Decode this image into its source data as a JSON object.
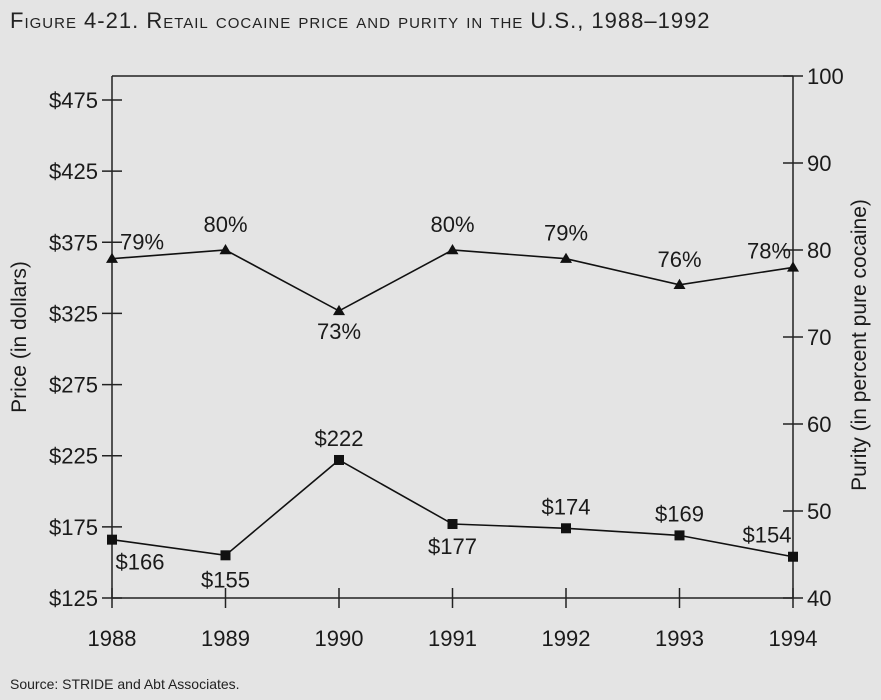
{
  "title": "Figure 4-21. Retail cocaine price and purity in the U.S., 1988–1992",
  "source": "Source: STRIDE and Abt Associates.",
  "chart_data": {
    "type": "line",
    "title": "Figure 4-21. Retail cocaine price and purity in the U.S., 1988–1992",
    "x": [
      1988,
      1989,
      1990,
      1991,
      1992,
      1993,
      1994
    ],
    "xticks": [
      "1988",
      "1989",
      "1990",
      "1991",
      "1992",
      "1993",
      "1994"
    ],
    "ylabel": "Price (in dollars)",
    "ylabel_right": "Purity (in percent pure cocaine)",
    "ylim": [
      125,
      475
    ],
    "ylim_right": [
      40,
      100
    ],
    "yticks": [
      "$125",
      "$175",
      "$225",
      "$275",
      "$325",
      "$375",
      "$425",
      "$475"
    ],
    "yticks_right": [
      "40",
      "50",
      "60",
      "70",
      "80",
      "90",
      "100"
    ],
    "grid": false,
    "series": [
      {
        "axis": "right",
        "marker": "triangle",
        "values": [
          79,
          80,
          73,
          80,
          79,
          76,
          78
        ],
        "labels": [
          "79%",
          "80%",
          "73%",
          "80%",
          "79%",
          "76%",
          "78%"
        ]
      },
      {
        "axis": "left",
        "marker": "square",
        "values": [
          166,
          155,
          222,
          177,
          174,
          169,
          154
        ],
        "labels": [
          "$166",
          "$155",
          "$222",
          "$177",
          "$174",
          "$169",
          "$154"
        ]
      }
    ]
  }
}
